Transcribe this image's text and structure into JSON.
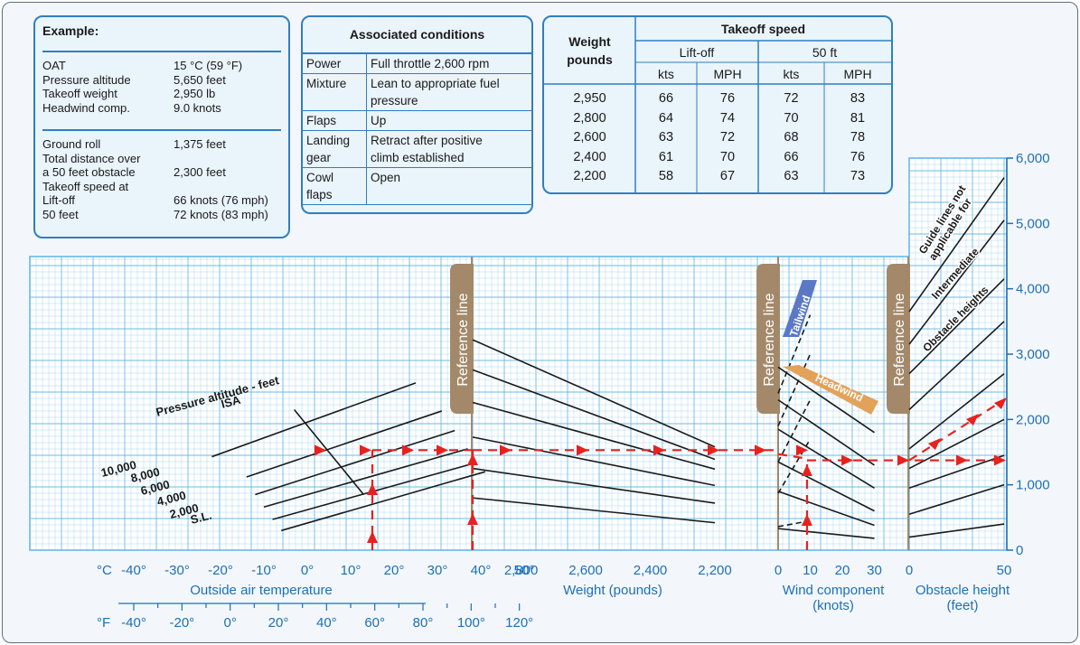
{
  "example": {
    "title": "Example:",
    "conditions": [
      {
        "label": "OAT",
        "value": "15 °C (59 °F)"
      },
      {
        "label": "Pressure altitude",
        "value": "5,650 feet"
      },
      {
        "label": "Takeoff weight",
        "value": "2,950 lb"
      },
      {
        "label": "Headwind comp.",
        "value": "9.0 knots"
      }
    ],
    "results": [
      {
        "label": "Ground roll",
        "value": "1,375 feet"
      },
      {
        "label": "Total distance over",
        "value": ""
      },
      {
        "label": "a 50 feet obstacle",
        "value": "2,300 feet"
      },
      {
        "label": "Takeoff speed at",
        "value": ""
      },
      {
        "label": "Lift-off",
        "value": "66 knots (76 mph)"
      },
      {
        "label": "50 feet",
        "value": "72 knots (83 mph)"
      }
    ]
  },
  "associated_conditions": {
    "title": "Associated conditions",
    "rows": [
      {
        "item": [
          "Power"
        ],
        "value": [
          "Full throttle 2,600 rpm"
        ]
      },
      {
        "item": [
          "Mixture"
        ],
        "value": [
          "Lean to appropriate fuel",
          "pressure"
        ]
      },
      {
        "item": [
          "Flaps"
        ],
        "value": [
          "Up"
        ]
      },
      {
        "item": [
          "Landing",
          "gear"
        ],
        "value": [
          "Retract after positive",
          "climb established"
        ]
      },
      {
        "item": [
          "Cowl",
          "flaps"
        ],
        "value": [
          "Open"
        ]
      }
    ]
  },
  "takeoff_speed": {
    "title": "Takeoff speed",
    "weight_header": [
      "Weight",
      "pounds"
    ],
    "groups": [
      "Lift-off",
      "50 ft"
    ],
    "units": [
      "kts",
      "MPH",
      "kts",
      "MPH"
    ],
    "rows": [
      [
        "2,950",
        "66",
        "76",
        "72",
        "83"
      ],
      [
        "2,800",
        "64",
        "74",
        "70",
        "81"
      ],
      [
        "2,600",
        "63",
        "72",
        "68",
        "78"
      ],
      [
        "2,400",
        "61",
        "70",
        "66",
        "76"
      ],
      [
        "2,200",
        "58",
        "67",
        "63",
        "73"
      ]
    ]
  },
  "chart_data": {
    "type": "line",
    "title": "",
    "colors": {
      "grid": "#5fb4e4",
      "grid_bg": "#ffffff",
      "curve": "#1a1a1a",
      "path": "#e8211e",
      "text_blue": "#1d6fb8",
      "ref_line": "#a3896a",
      "tailwind": "#5b78c6",
      "headwind": "#e2a25a"
    },
    "y_axis": {
      "label": "",
      "range": [
        0,
        6000
      ],
      "ticks": [
        "0",
        "1,000",
        "2,000",
        "3,000",
        "4,000",
        "5,000",
        "6,000"
      ]
    },
    "temperature_panel": {
      "xlabel": "Outside air temperature",
      "unit_c": "°C",
      "ticks_c": [
        "-40°",
        "-30°",
        "-20°",
        "-10°",
        "0°",
        "10°",
        "20°",
        "30°",
        "40°",
        "50°"
      ],
      "unit_f": "°F",
      "ticks_f": [
        "-40°",
        "-20°",
        "0°",
        "20°",
        "40°",
        "60°",
        "80°",
        "100°",
        "120°"
      ],
      "curve_title": "Pressure altitude - feet",
      "isa_label": "ISA",
      "series": [
        {
          "name": "10,000",
          "x": [
            -22,
            25
          ],
          "y": [
            1430,
            2560
          ]
        },
        {
          "name": "8,000",
          "x": [
            -14,
            31
          ],
          "y": [
            1120,
            2130
          ]
        },
        {
          "name": "6,000",
          "x": [
            -12,
            34
          ],
          "y": [
            850,
            1830
          ]
        },
        {
          "name": "4,000",
          "x": [
            -10,
            37
          ],
          "y": [
            660,
            1550
          ]
        },
        {
          "name": "2,000",
          "x": [
            -8,
            39
          ],
          "y": [
            470,
            1340
          ]
        },
        {
          "name": "S.L.",
          "x": [
            -6,
            41
          ],
          "y": [
            300,
            1200
          ]
        }
      ],
      "isa_curve": {
        "x": [
          -3,
          5,
          13
        ],
        "y": [
          2150,
          1500,
          850
        ]
      }
    },
    "weight_panel": {
      "xlabel": "Weight (pounds)",
      "ref_label": "Reference line",
      "ticks": [
        "2,800",
        "2,600",
        "2,400",
        "2,200"
      ],
      "guide_lines": [
        {
          "x": [
            2950,
            2200
          ],
          "y": [
            3220,
            1580
          ]
        },
        {
          "x": [
            2950,
            2200
          ],
          "y": [
            2760,
            1390
          ]
        },
        {
          "x": [
            2950,
            2200
          ],
          "y": [
            2260,
            1240
          ]
        },
        {
          "x": [
            2950,
            2200
          ],
          "y": [
            1730,
            990
          ]
        },
        {
          "x": [
            2950,
            2200
          ],
          "y": [
            1250,
            720
          ]
        },
        {
          "x": [
            2950,
            2200
          ],
          "y": [
            800,
            420
          ]
        }
      ]
    },
    "wind_panel": {
      "xlabel": "Wind component",
      "xlabel2": "(knots)",
      "ref_label": "Reference line",
      "ticks": [
        "0",
        "10",
        "20",
        "30"
      ],
      "tailwind_label": "Tailwind",
      "headwind_label": "Headwind",
      "headwind_lines": [
        {
          "x": [
            0,
            30
          ],
          "y": [
            2800,
            1800
          ]
        },
        {
          "x": [
            0,
            30
          ],
          "y": [
            2300,
            1300
          ]
        },
        {
          "x": [
            0,
            30
          ],
          "y": [
            1850,
            950
          ]
        },
        {
          "x": [
            0,
            30
          ],
          "y": [
            1350,
            600
          ]
        },
        {
          "x": [
            0,
            30
          ],
          "y": [
            900,
            380
          ]
        },
        {
          "x": [
            0,
            30
          ],
          "y": [
            330,
            180
          ]
        }
      ],
      "tailwind_lines": [
        {
          "x": [
            0,
            10
          ],
          "y": [
            2400,
            3600
          ]
        },
        {
          "x": [
            0,
            10
          ],
          "y": [
            1900,
            3000
          ]
        },
        {
          "x": [
            0,
            10
          ],
          "y": [
            1350,
            2300
          ]
        },
        {
          "x": [
            0,
            10
          ],
          "y": [
            870,
            1700
          ]
        },
        {
          "x": [
            0,
            10
          ],
          "y": [
            360,
            450
          ]
        }
      ]
    },
    "obstacle_panel": {
      "xlabel": "Obstacle height",
      "xlabel2": "(feet)",
      "ref_label": "Reference line",
      "ticks": [
        "0",
        "50"
      ],
      "guide_note": [
        "Guide lines not",
        "applicable for",
        "Intermediate",
        "Obstacle heights"
      ],
      "guide_lines": [
        {
          "x": [
            0,
            50
          ],
          "y": [
            3650,
            5700
          ]
        },
        {
          "x": [
            0,
            50
          ],
          "y": [
            3150,
            5050
          ]
        },
        {
          "x": [
            0,
            50
          ],
          "y": [
            2700,
            4150
          ]
        },
        {
          "x": [
            0,
            50
          ],
          "y": [
            2150,
            3500
          ]
        },
        {
          "x": [
            0,
            50
          ],
          "y": [
            1550,
            2700
          ]
        },
        {
          "x": [
            0,
            50
          ],
          "y": [
            1250,
            2000
          ]
        },
        {
          "x": [
            0,
            50
          ],
          "y": [
            950,
            1450
          ]
        },
        {
          "x": [
            0,
            50
          ],
          "y": [
            550,
            1000
          ]
        },
        {
          "x": [
            0,
            50
          ],
          "y": [
            200,
            400
          ]
        }
      ]
    },
    "example_path": {
      "oat_c": 15,
      "pressure_altitude_ft": 5650,
      "weight_lb": 2950,
      "headwind_kts": 9,
      "ground_roll_ft": 1375,
      "total_distance_50ft_ft": 2300
    }
  }
}
